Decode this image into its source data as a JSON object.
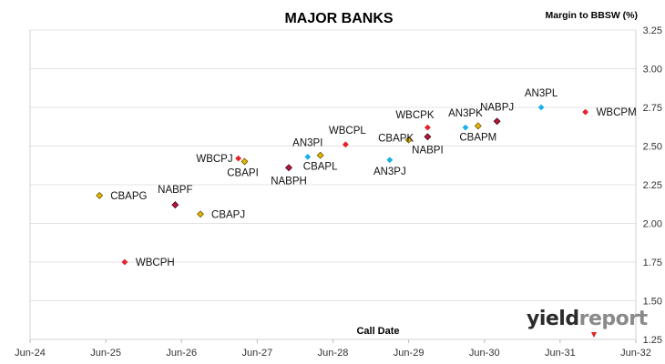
{
  "chart_data": {
    "type": "scatter",
    "title": "MAJOR BANKS",
    "ylabel": "Margin to BBSW (%)",
    "xlabel": "Call Date",
    "ylim": [
      1.25,
      3.25
    ],
    "yticks": [
      "1.25",
      "1.50",
      "1.75",
      "2.00",
      "2.25",
      "2.50",
      "2.75",
      "3.00",
      "3.25"
    ],
    "xlim": [
      "2024-06",
      "2032-06"
    ],
    "xticks": [
      "Jun-24",
      "Jun-25",
      "Jun-26",
      "Jun-27",
      "Jun-28",
      "Jun-29",
      "Jun-30",
      "Jun-31",
      "Jun-32"
    ],
    "grid": "horizontal",
    "colors": {
      "ANZ": "#1ab0e8",
      "CBA": "#e6b800",
      "NAB": "#c0143c",
      "WBC": "#e8202a"
    },
    "points": [
      {
        "label": "CBAPG",
        "x": "2025-05",
        "y": 2.18,
        "bank": "CBA"
      },
      {
        "label": "WBCPH",
        "x": "2025-09",
        "y": 1.75,
        "bank": "WBC"
      },
      {
        "label": "NABPF",
        "x": "2026-05",
        "y": 2.12,
        "bank": "NAB"
      },
      {
        "label": "CBAPJ",
        "x": "2026-09",
        "y": 2.06,
        "bank": "CBA"
      },
      {
        "label": "WBCPJ",
        "x": "2027-03",
        "y": 2.42,
        "bank": "WBC"
      },
      {
        "label": "CBAPI",
        "x": "2027-04",
        "y": 2.4,
        "bank": "CBA"
      },
      {
        "label": "NABPH",
        "x": "2027-11",
        "y": 2.36,
        "bank": "NAB"
      },
      {
        "label": "AN3PI",
        "x": "2028-02",
        "y": 2.43,
        "bank": "ANZ"
      },
      {
        "label": "CBAPL",
        "x": "2028-04",
        "y": 2.44,
        "bank": "CBA"
      },
      {
        "label": "WBCPL",
        "x": "2028-08",
        "y": 2.51,
        "bank": "WBC"
      },
      {
        "label": "AN3PJ",
        "x": "2029-03",
        "y": 2.41,
        "bank": "ANZ"
      },
      {
        "label": "CBAPK",
        "x": "2029-06",
        "y": 2.54,
        "bank": "CBA"
      },
      {
        "label": "NABPI",
        "x": "2029-09",
        "y": 2.56,
        "bank": "NAB"
      },
      {
        "label": "WBCPK",
        "x": "2029-09",
        "y": 2.62,
        "bank": "WBC"
      },
      {
        "label": "AN3PK",
        "x": "2030-03",
        "y": 2.62,
        "bank": "ANZ"
      },
      {
        "label": "CBAPM",
        "x": "2030-05",
        "y": 2.63,
        "bank": "CBA"
      },
      {
        "label": "NABPJ",
        "x": "2030-08",
        "y": 2.66,
        "bank": "NAB"
      },
      {
        "label": "AN3PL",
        "x": "2031-03",
        "y": 2.75,
        "bank": "ANZ"
      },
      {
        "label": "WBCPM",
        "x": "2031-10",
        "y": 2.72,
        "bank": "WBC"
      }
    ]
  },
  "logo": {
    "part1": "yield",
    "part2": "report"
  }
}
